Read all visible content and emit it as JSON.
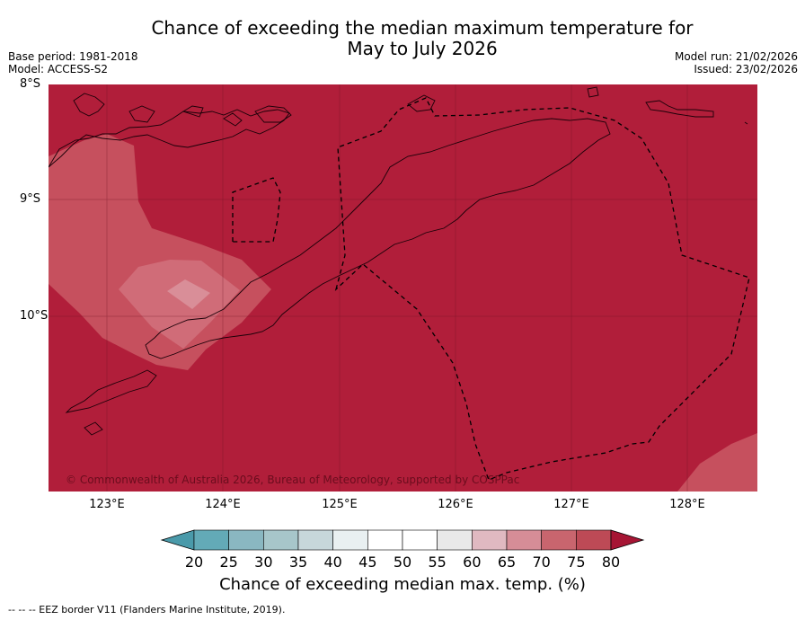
{
  "title": {
    "line1": "Chance of exceeding the median maximum temperature for",
    "line2": "May to July 2026"
  },
  "meta": {
    "base_period": "Base period: 1981-2018",
    "model": "Model: ACCESS-S2",
    "model_run": "Model run: 21/02/2026",
    "issued": "Issued: 23/02/2026"
  },
  "map": {
    "latitudes": [
      "8°S",
      "9°S",
      "10°S"
    ],
    "longitudes": [
      "123°E",
      "124°E",
      "125°E",
      "126°E",
      "127°E",
      "128°E"
    ],
    "copyright": "© Commonwealth of Australia 2026, Bureau of Meteorology, supported by COSPPac"
  },
  "colorbar": {
    "ticks": [
      "20",
      "25",
      "30",
      "35",
      "40",
      "45",
      "50",
      "55",
      "60",
      "65",
      "70",
      "75",
      "80"
    ],
    "colors": [
      "#63aab7",
      "#8ab7c1",
      "#a7c6ca",
      "#c7d7db",
      "#e9f0f1",
      "#ffffff",
      "#ffffff",
      "#e9e9e9",
      "#e0b9c1",
      "#d68d97",
      "#c9656e",
      "#bd4a56",
      "#b11e3a"
    ],
    "low_color": "#4a9aaa",
    "high_color": "#a61534",
    "label": "Chance of exceeding median max. temp. (%)"
  },
  "map_colors": {
    "base": "#b11e3a",
    "level_75": "#c6505e",
    "level_70": "#d06c78",
    "level_65": "#d98e98"
  },
  "footer": "--  --  -- EEZ border V11 (Flanders Marine Institute, 2019)."
}
